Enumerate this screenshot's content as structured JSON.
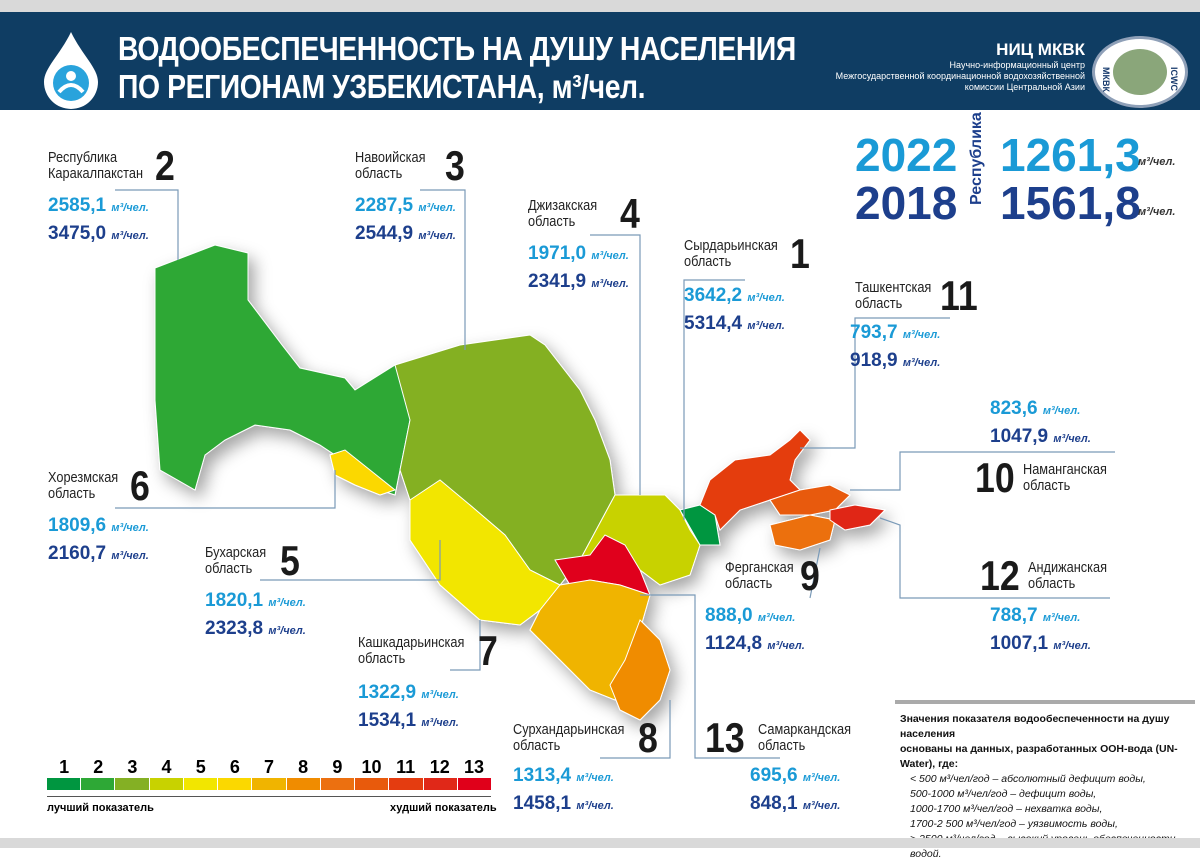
{
  "header": {
    "title_line1": "ВОДООБЕСПЕЧЕННОСТЬ НА ДУШУ НАСЕЛЕНИЯ",
    "title_line2": "ПО РЕГИОНАМ УЗБЕКИСТАНА, м³/чел.",
    "org_name": "НИЦ МКВК",
    "org_desc1": "Научно-информационный центр",
    "org_desc2": "Межгосударственной координационной водохозяйственной",
    "org_desc3": "комиссии Центральной Азии",
    "seal_left": "МКВК",
    "seal_right": "ICWC"
  },
  "republic": {
    "label": "Республика",
    "rows": [
      {
        "year": "2022",
        "value": "1261,3",
        "unit": "м³/чел."
      },
      {
        "year": "2018",
        "value": "1561,8",
        "unit": "м³/чел."
      }
    ]
  },
  "unit": "м³/чел.",
  "regions": [
    {
      "rank": "2",
      "name1": "Республика",
      "name2": "Каракалпакстан",
      "v2022": "2585,1",
      "v2018": "3475,0",
      "color": "#2ea836"
    },
    {
      "rank": "3",
      "name1": "Навоийская",
      "name2": "область",
      "v2022": "2287,5",
      "v2018": "2544,9",
      "color": "#84b024"
    },
    {
      "rank": "4",
      "name1": "Джизакская",
      "name2": "область",
      "v2022": "1971,0",
      "v2018": "2341,9",
      "color": "#c8d200"
    },
    {
      "rank": "1",
      "name1": "Сырдарьинская",
      "name2": "область",
      "v2022": "3642,2",
      "v2018": "5314,4",
      "color": "#009640"
    },
    {
      "rank": "11",
      "name1": "Ташкентская",
      "name2": "область",
      "v2022": "793,7",
      "v2018": "918,9",
      "color": "#e43c10"
    },
    {
      "rank": "10",
      "name1": "Наманганская",
      "name2": "область",
      "v2022": "823,6",
      "v2018": "1047,9",
      "color": "#e85a0c"
    },
    {
      "rank": "6",
      "name1": "Хорезмская",
      "name2": "область",
      "v2022": "1809,6",
      "v2018": "2160,7",
      "color": "#fbd800"
    },
    {
      "rank": "5",
      "name1": "Бухарская",
      "name2": "область",
      "v2022": "1820,1",
      "v2018": "2323,8",
      "color": "#f2e600"
    },
    {
      "rank": "9",
      "name1": "Ферганская",
      "name2": "область",
      "v2022": "888,0",
      "v2018": "1124,8",
      "color": "#ec7010"
    },
    {
      "rank": "12",
      "name1": "Андижанская",
      "name2": "область",
      "v2022": "788,7",
      "v2018": "1007,1",
      "color": "#e02818"
    },
    {
      "rank": "7",
      "name1": "Кашкадарьинская",
      "name2": "область",
      "v2022": "1322,9",
      "v2018": "1534,1",
      "color": "#f0b400"
    },
    {
      "rank": "8",
      "name1": "Сурхандарьинская",
      "name2": "область",
      "v2022": "1313,4",
      "v2018": "1458,1",
      "color": "#f08c00"
    },
    {
      "rank": "13",
      "name1": "Самаркандская",
      "name2": "область",
      "v2022": "695,6",
      "v2018": "848,1",
      "color": "#e0001a"
    }
  ],
  "legend": {
    "ranks": [
      "1",
      "2",
      "3",
      "4",
      "5",
      "6",
      "7",
      "8",
      "9",
      "10",
      "11",
      "12",
      "13"
    ],
    "colors": [
      "#009640",
      "#2ea836",
      "#84b024",
      "#c8d200",
      "#f2e600",
      "#fbd800",
      "#f0b400",
      "#f08c00",
      "#ec7010",
      "#e85a0c",
      "#e43c10",
      "#e02818",
      "#e0001a"
    ],
    "best": "лучший показатель",
    "worst": "худший показатель"
  },
  "note": {
    "title1": "Значения показателя водообеспеченности на душу населения",
    "title2": "основаны на данных, разработанных ООН-вода (UN-Water), где:",
    "items": [
      "< 500 м³/чел/год – абсолютный дефицит воды,",
      "500-1000 м³/чел/год – дефицит воды,",
      "1000-1700 м³/чел/год – нехватка воды,",
      "1700-2 500 м³/чел/год – уязвимость воды,",
      "> 2500 м³/чел/год – высокий уровень обеспеченности водой."
    ]
  }
}
